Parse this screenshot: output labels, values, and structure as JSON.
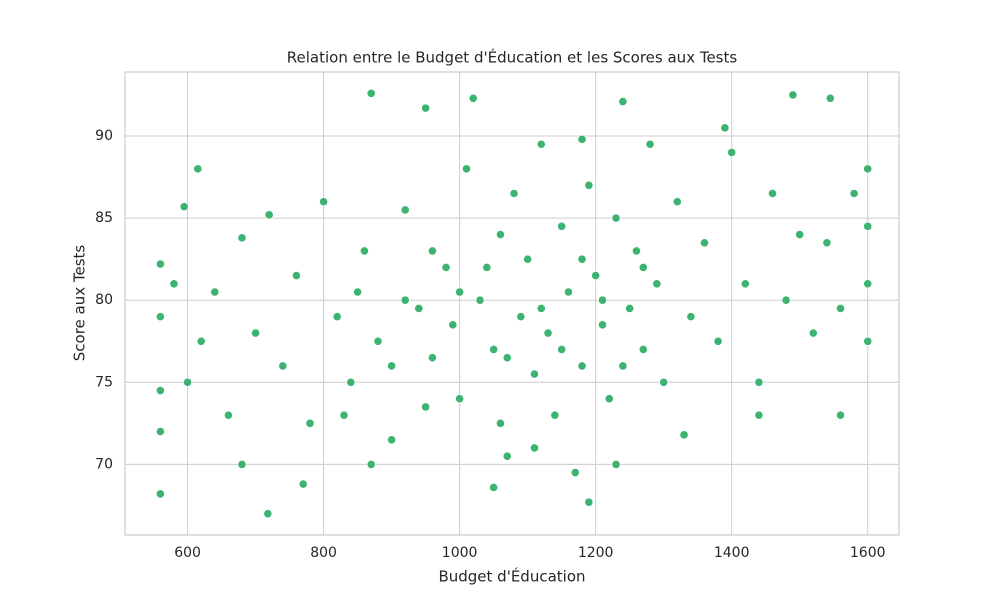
{
  "chart_data": {
    "type": "scatter",
    "title": "Relation entre le Budget d'Éducation et les Scores aux Tests",
    "x_label": "Budget d'Éducation",
    "y_label": "Score aux Tests",
    "color": "#3cb371",
    "grid": true,
    "xlim": [
      508,
      1646
    ],
    "xticks": [
      600,
      800,
      1000,
      1200,
      1400,
      1600
    ],
    "ylim": [
      65.7,
      93.9
    ],
    "yticks": [
      70,
      75,
      80,
      85,
      90
    ],
    "x": [
      560,
      718,
      870,
      950,
      1020,
      1240,
      1490,
      1545,
      1600,
      1190,
      1560,
      615,
      595,
      560,
      560,
      560,
      560,
      580,
      600,
      620,
      640,
      660,
      680,
      700,
      720,
      740,
      760,
      780,
      800,
      820,
      840,
      860,
      880,
      900,
      920,
      940,
      960,
      980,
      1000,
      1010,
      1030,
      1050,
      1060,
      1070,
      1080,
      1090,
      1100,
      1110,
      1120,
      1130,
      1140,
      1150,
      1160,
      1170,
      1180,
      1190,
      1200,
      1210,
      1220,
      1230,
      1250,
      1260,
      1270,
      1280,
      1290,
      1300,
      1320,
      1340,
      1360,
      1380,
      1400,
      1420,
      1440,
      1460,
      1480,
      1500,
      1520,
      1540,
      1560,
      1580,
      1600,
      1600,
      1600,
      900,
      920,
      950,
      990,
      1040,
      1070,
      1120,
      1150,
      1180,
      1210,
      1240,
      1270,
      1000,
      960,
      850,
      830,
      1060,
      1330,
      1440,
      870,
      1110,
      1230,
      1050,
      770,
      680,
      1390,
      1180
    ],
    "y": [
      68.2,
      67.0,
      92.6,
      91.7,
      92.3,
      92.1,
      92.5,
      92.3,
      88.0,
      67.7,
      73.0,
      88.0,
      85.7,
      82.2,
      79.0,
      74.5,
      72.0,
      81.0,
      75.0,
      77.5,
      80.5,
      73.0,
      83.8,
      78.0,
      85.2,
      76.0,
      81.5,
      72.5,
      86.0,
      79.0,
      75.0,
      83.0,
      77.5,
      71.5,
      85.5,
      79.5,
      76.5,
      82.0,
      74.0,
      88.0,
      80.0,
      77.0,
      84.0,
      70.5,
      86.5,
      79.0,
      82.5,
      75.5,
      89.5,
      78.0,
      73.0,
      84.5,
      80.5,
      69.5,
      76.0,
      87.0,
      81.5,
      78.5,
      74.0,
      85.0,
      79.5,
      83.0,
      77.0,
      89.5,
      81.0,
      75.0,
      86.0,
      79.0,
      83.5,
      77.5,
      89.0,
      81.0,
      75.0,
      86.5,
      80.0,
      84.0,
      78.0,
      83.5,
      79.5,
      86.5,
      81.0,
      77.5,
      84.5,
      76.0,
      80.0,
      73.5,
      78.5,
      82.0,
      76.5,
      79.5,
      77.0,
      82.5,
      80.0,
      76.0,
      82.0,
      80.5,
      83.0,
      80.5,
      73.0,
      72.5,
      71.8,
      73.0,
      70.0,
      71.0,
      70.0,
      68.6,
      68.8,
      70.0,
      90.5,
      89.8
    ]
  }
}
